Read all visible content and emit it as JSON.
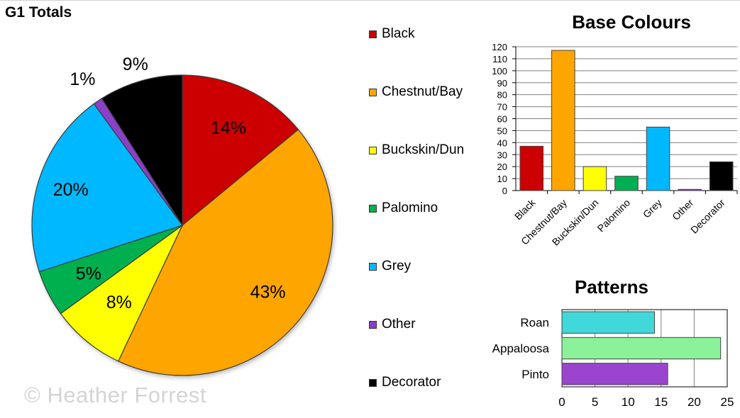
{
  "watermark": "© Heather Forrest",
  "chart_data": [
    {
      "type": "pie",
      "title": "G1 Totals",
      "categories": [
        "Black",
        "Chestnut/Bay",
        "Buckskin/Dun",
        "Palomino",
        "Grey",
        "Other",
        "Decorator"
      ],
      "values": [
        14,
        43,
        8,
        5,
        20,
        1,
        9
      ],
      "data_labels": [
        "14%",
        "43%",
        "8%",
        "5%",
        "20%",
        "1%",
        "9%"
      ],
      "colors": [
        "#cc0000",
        "#ffa500",
        "#ffff00",
        "#00b050",
        "#00b8ff",
        "#8b3fc9",
        "#000000"
      ],
      "legend": "right"
    },
    {
      "type": "bar",
      "title": "Base Colours",
      "categories": [
        "Black",
        "Chestnut/Bay",
        "Buckskin/Dun",
        "Palomino",
        "Grey",
        "Other",
        "Decorator"
      ],
      "values": [
        37,
        117,
        20,
        12,
        53,
        1,
        24
      ],
      "colors": [
        "#cc0000",
        "#ffa500",
        "#ffff00",
        "#00b050",
        "#00b8ff",
        "#8b3fc9",
        "#000000"
      ],
      "ylim": [
        0,
        120
      ],
      "yticks": [
        "0",
        "10",
        "20",
        "30",
        "40",
        "50",
        "60",
        "70",
        "80",
        "90",
        "100",
        "110",
        "120"
      ],
      "grid": true
    },
    {
      "type": "bar",
      "orientation": "horizontal",
      "title": "Patterns",
      "categories": [
        "Roan",
        "Appaloosa",
        "Pinto"
      ],
      "values": [
        14,
        24,
        16
      ],
      "colors": [
        "#40d8d8",
        "#8cf29a",
        "#9b44d0"
      ],
      "xlim": [
        0,
        25
      ],
      "xticks": [
        "0",
        "5",
        "10",
        "15",
        "20",
        "25"
      ],
      "grid": true
    }
  ]
}
